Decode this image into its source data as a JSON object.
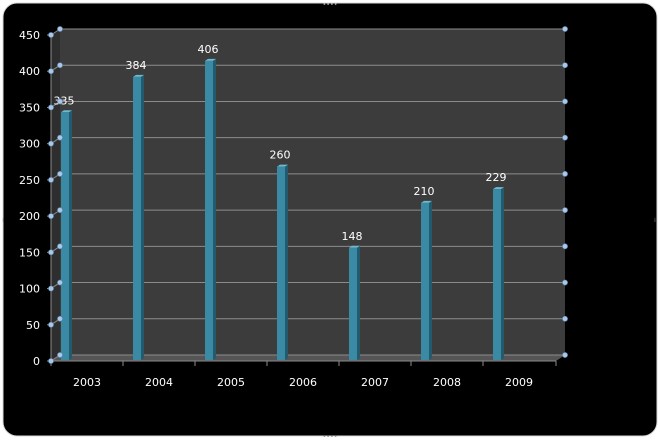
{
  "colors": {
    "chart_area": "#000000",
    "plot_back_wall": "#3c3c3c",
    "plot_floor": "#555555",
    "gridline": "#8c8c8c",
    "bar_front": "#3a8aa5",
    "bar_side": "#245a6e",
    "bar_top": "#6fb9d0",
    "axis_text": "#ffffff",
    "selection_handle": "#a9c8e8",
    "frame_edge": "#d9d9d9"
  },
  "chart_data": {
    "type": "bar",
    "style": "3d-column",
    "categories": [
      "2003",
      "2004",
      "2005",
      "2006",
      "2007",
      "2008",
      "2009"
    ],
    "values": [
      335,
      384,
      406,
      260,
      148,
      210,
      229
    ],
    "data_labels": [
      "335",
      "384",
      "406",
      "260",
      "148",
      "210",
      "229"
    ],
    "yticks": [
      0,
      50,
      100,
      150,
      200,
      250,
      300,
      350,
      400,
      450
    ],
    "ylim": [
      0,
      450
    ],
    "grid": true,
    "legend": "none",
    "title": "",
    "xlabel": "",
    "ylabel": ""
  }
}
